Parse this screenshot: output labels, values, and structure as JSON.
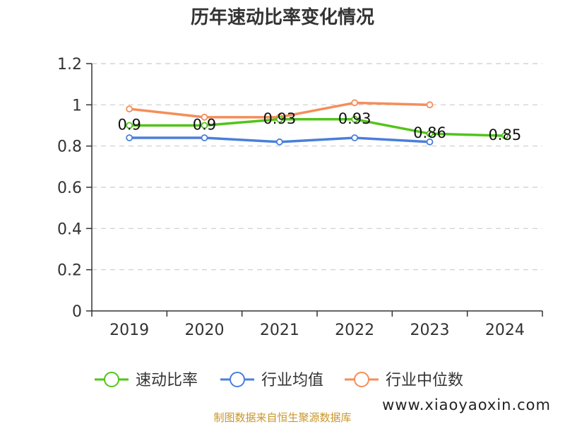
{
  "chart_data": {
    "type": "line",
    "title": "历年速动比率变化情况",
    "categories": [
      "2019",
      "2020",
      "2021",
      "2022",
      "2023",
      "2024"
    ],
    "y_ticks": [
      "0",
      "0.2",
      "0.4",
      "0.6",
      "0.8",
      "1",
      "1.2"
    ],
    "ylim": [
      0,
      1.2
    ],
    "grid": true,
    "legend_position": "bottom",
    "series": [
      {
        "name": "速动比率",
        "color": "#52c41a",
        "values": [
          0.9,
          0.9,
          0.93,
          0.93,
          0.86,
          0.85
        ],
        "labels": [
          "0.9",
          "0.9",
          "0.93",
          "0.93",
          "0.86",
          "0.85"
        ],
        "show_labels": true
      },
      {
        "name": "行业均值",
        "color": "#4a7fd9",
        "values": [
          0.84,
          0.84,
          0.82,
          0.84,
          0.82,
          null
        ],
        "show_labels": false
      },
      {
        "name": "行业中位数",
        "color": "#f58d5a",
        "values": [
          0.98,
          0.94,
          0.94,
          1.01,
          1.0,
          null
        ],
        "show_labels": false
      }
    ]
  },
  "footer": {
    "source": "制图数据来自恒生聚源数据库",
    "watermark": "www.xiaoyaoxin.com"
  }
}
